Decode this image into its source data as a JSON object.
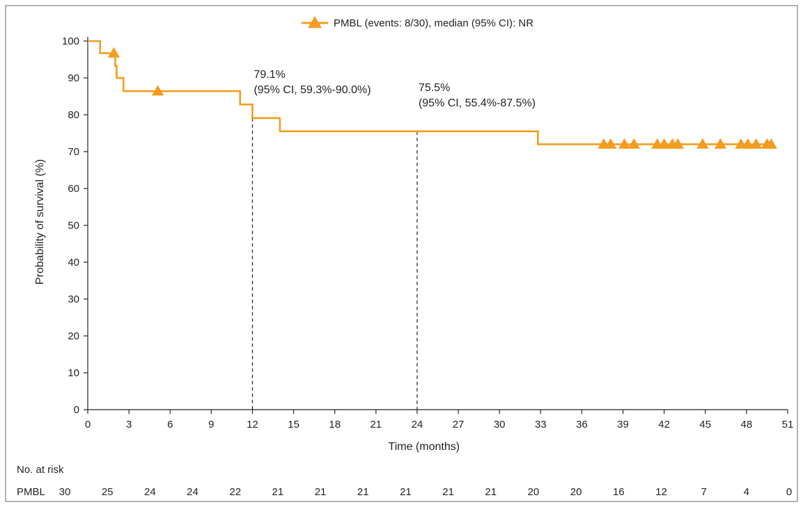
{
  "chart_data": {
    "type": "line",
    "subtype": "kaplan-meier",
    "xlabel": "Time (months)",
    "ylabel": "Probability of survival (%)",
    "xlim": [
      0,
      51
    ],
    "ylim": [
      0,
      100
    ],
    "xticks": [
      0,
      3,
      6,
      9,
      12,
      15,
      18,
      21,
      24,
      27,
      30,
      33,
      36,
      39,
      42,
      45,
      48,
      51
    ],
    "yticks": [
      0,
      10,
      20,
      30,
      40,
      50,
      60,
      70,
      80,
      90,
      100
    ],
    "grid": false,
    "legend_position": "top-center",
    "color": "#F39C1F",
    "series": [
      {
        "name": "PMBL (events: 8/30), median (95% CI): NR",
        "steps": [
          [
            0,
            100
          ],
          [
            0.9,
            96.7
          ],
          [
            2.0,
            93.3
          ],
          [
            2.1,
            90.0
          ],
          [
            2.6,
            86.4
          ],
          [
            11.1,
            82.8
          ],
          [
            12.0,
            79.1
          ],
          [
            14.0,
            75.5
          ],
          [
            32.8,
            72.0
          ],
          [
            50,
            72.0
          ]
        ],
        "censored": [
          [
            1.9,
            96.7
          ],
          [
            5.1,
            86.4
          ],
          [
            37.6,
            72.0
          ],
          [
            38.1,
            72.0
          ],
          [
            39.1,
            72.0
          ],
          [
            39.8,
            72.0
          ],
          [
            41.5,
            72.0
          ],
          [
            42.0,
            72.0
          ],
          [
            42.6,
            72.0
          ],
          [
            43.0,
            72.0
          ],
          [
            44.8,
            72.0
          ],
          [
            46.1,
            72.0
          ],
          [
            47.6,
            72.0
          ],
          [
            48.1,
            72.0
          ],
          [
            48.7,
            72.0
          ],
          [
            49.5,
            72.0
          ],
          [
            49.8,
            72.0
          ]
        ]
      }
    ],
    "annotations": [
      {
        "x": 12,
        "y": 79.1,
        "line1": "79.1%",
        "line2": "(95% CI, 59.3%-90.0%)"
      },
      {
        "x": 24,
        "y": 75.5,
        "line1": "75.5%",
        "line2": "(95% CI, 55.4%-87.5%)"
      }
    ],
    "risk_table": {
      "header": "No. at risk",
      "row_label": "PMBL",
      "times": [
        0,
        3,
        6,
        9,
        12,
        15,
        18,
        21,
        24,
        27,
        30,
        33,
        36,
        39,
        42,
        45,
        48,
        51
      ],
      "values": [
        "30",
        "25",
        "24",
        "24",
        "22",
        "21",
        "21",
        "21",
        "21",
        "21",
        "21",
        "20",
        "20",
        "16",
        "12",
        "7",
        "4",
        "0"
      ]
    }
  }
}
